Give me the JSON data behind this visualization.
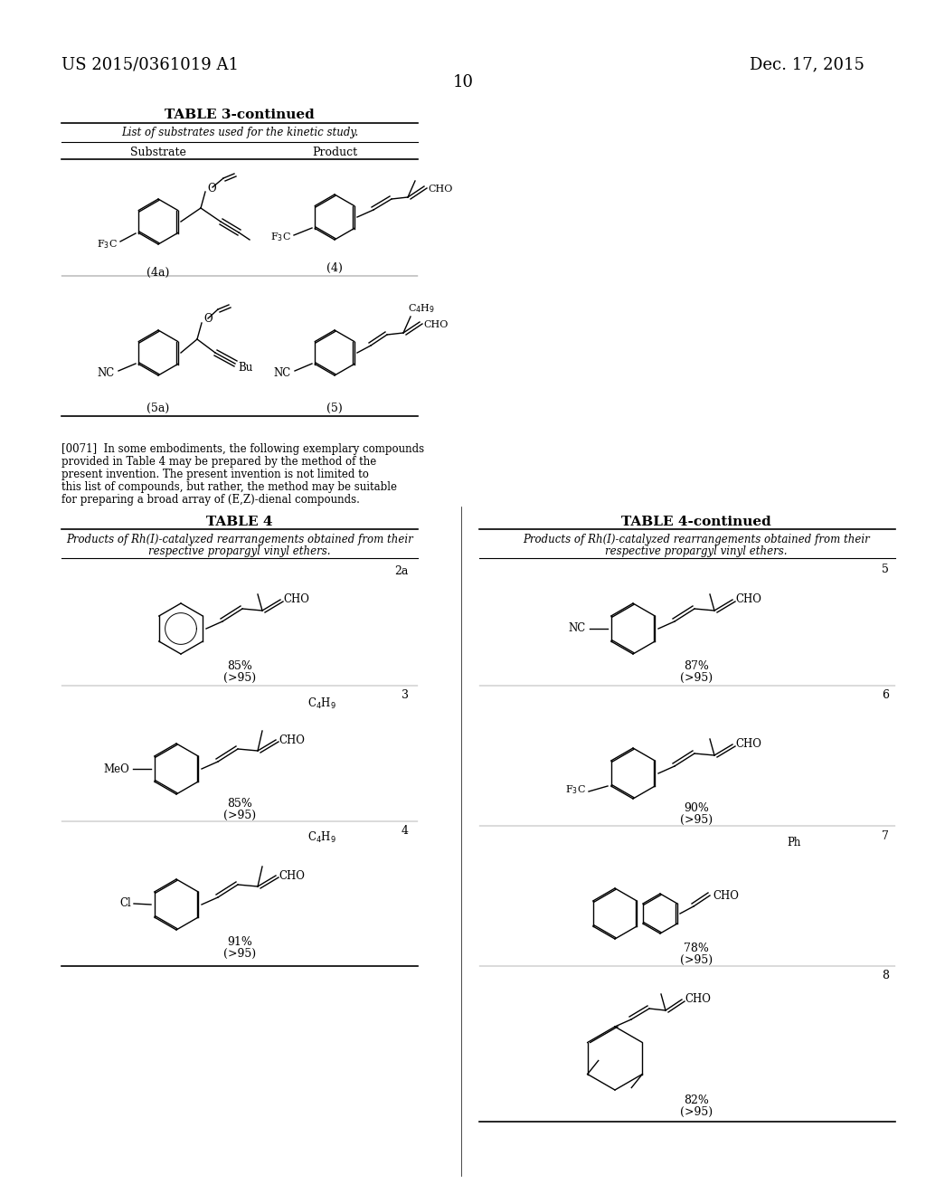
{
  "background_color": "#ffffff",
  "page_number": "10",
  "header_left": "US 2015/0361019 A1",
  "header_right": "Dec. 17, 2015",
  "table3_title": "TABLE 3-continued",
  "table3_subtitle": "List of substrates used for the kinetic study.",
  "table3_col1": "Substrate",
  "table3_col2": "Product",
  "table3_row1_sub_label": "(4a)",
  "table3_row1_prod_label": "(4)",
  "table3_row2_sub_label": "(5a)",
  "table3_row2_prod_label": "(5)",
  "paragraph_0071": "[0071]  In some embodiments, the following exemplary compounds provided in Table 4 may be prepared by the method of the present invention. The present invention is not limited to this list of compounds, but rather, the method may be suitable for preparing a broad array of (E,Z)-dienal compounds.",
  "table4_title": "TABLE 4",
  "table4_subtitle_line1": "Products of Rh(I)-catalyzed rearrangements obtained from their",
  "table4_subtitle_line2": "respective propargyl vinyl ethers.",
  "compound_2a_label": "2a",
  "compound_2a_yield": "85%",
  "compound_2a_ee": "(>95)",
  "compound_3_label": "3",
  "compound_3_yield": "85%",
  "compound_3_ee": "(>95)",
  "compound_4_label": "4",
  "compound_4_yield": "91%",
  "compound_4_ee": "(>95)",
  "compound_5_label": "5",
  "compound_5_yield": "87%",
  "compound_5_ee": "(>95)",
  "compound_6_label": "6",
  "compound_6_yield": "90%",
  "compound_6_ee": "(>95)",
  "compound_7_label": "7",
  "compound_7_yield": "78%",
  "compound_7_ee": "(>95)",
  "compound_8_label": "8",
  "compound_8_yield": "82%",
  "compound_8_ee": "(>95)",
  "table4_right_title": "TABLE 4-continued",
  "table4_right_subtitle_line1": "Products of Rh(I)-catalyzed rearrangements obtained from their",
  "table4_right_subtitle_line2": "respective propargyl vinyl ethers."
}
